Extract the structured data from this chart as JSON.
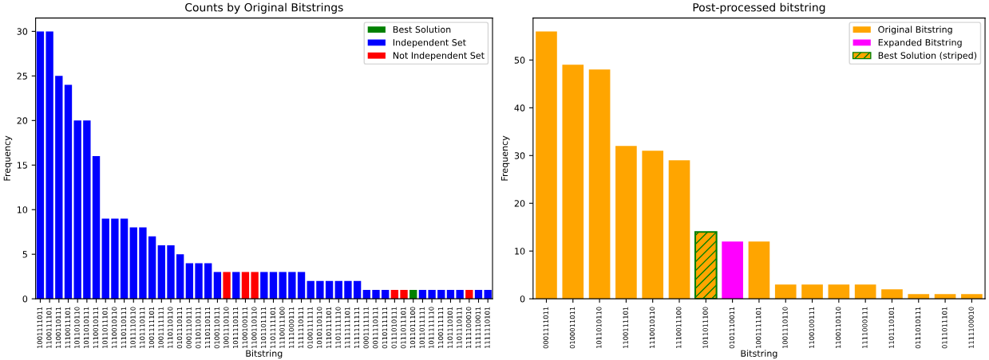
{
  "chart_data": [
    {
      "type": "bar",
      "title": "Counts by Original Bitstrings",
      "xlabel": "Bitstring",
      "ylabel": "Frequency",
      "categories": [
        "1001111011",
        "1100111101",
        "1100110111",
        "1110011101",
        "1011010110",
        "1011010111",
        "1110010111",
        "1011011101",
        "1110010110",
        "1110110111",
        "1011110110",
        "1101110111",
        "1001111101",
        "1001111111",
        "1110110110",
        "0101110111",
        "0001110111",
        "0110110111",
        "1110110111",
        "0100110111",
        "1001110110",
        "1011110111",
        "1100100111",
        "1100110110",
        "1101101111",
        "1101111101",
        "1110011100",
        "1111000111",
        "1111110111",
        "0100111111",
        "1010110110",
        "1110111101",
        "1101111110",
        "1111111101",
        "1111111111",
        "0001111111",
        "0011110111",
        "0110111111",
        "0111010111",
        "0111011101",
        "1011011100",
        "1011011111",
        "1011111110",
        "1100111111",
        "1101110101",
        "1101110111",
        "1111100010",
        "1111110011",
        "1111110101"
      ],
      "series": [
        {
          "name": "Best Solution",
          "color": "#008000",
          "values": [
            null,
            null,
            null,
            null,
            null,
            null,
            null,
            null,
            null,
            null,
            null,
            null,
            null,
            null,
            null,
            null,
            null,
            null,
            null,
            null,
            null,
            null,
            null,
            null,
            null,
            null,
            null,
            null,
            null,
            null,
            null,
            null,
            null,
            null,
            null,
            null,
            null,
            null,
            null,
            null,
            1,
            null,
            null,
            null,
            null,
            null,
            null,
            null,
            null
          ]
        },
        {
          "name": "Independent Set",
          "color": "#0000ff",
          "values": [
            30,
            30,
            25,
            24,
            20,
            20,
            16,
            9,
            9,
            9,
            8,
            8,
            7,
            6,
            6,
            5,
            4,
            4,
            4,
            3,
            null,
            3,
            null,
            null,
            3,
            3,
            3,
            3,
            3,
            2,
            2,
            2,
            2,
            2,
            2,
            1,
            1,
            1,
            null,
            null,
            null,
            1,
            1,
            1,
            1,
            1,
            null,
            1,
            1
          ]
        },
        {
          "name": "Not Independent Set",
          "color": "#ff0000",
          "values": [
            null,
            null,
            null,
            null,
            null,
            null,
            null,
            null,
            null,
            null,
            null,
            null,
            null,
            null,
            null,
            null,
            null,
            null,
            null,
            null,
            3,
            null,
            3,
            3,
            null,
            null,
            null,
            null,
            null,
            null,
            null,
            null,
            null,
            null,
            null,
            null,
            null,
            null,
            1,
            1,
            null,
            null,
            null,
            null,
            null,
            null,
            1,
            null,
            null
          ]
        }
      ],
      "ylim": [
        0,
        31.5
      ],
      "yticks": [
        0,
        5,
        10,
        15,
        20,
        25,
        30
      ],
      "legend": "top right",
      "grid": false
    },
    {
      "type": "bar",
      "title": "Post-processed bitstring",
      "xlabel": "Bitstring",
      "ylabel": "Frequency",
      "categories": [
        "0001111011",
        "0100011011",
        "1011010110",
        "1100111101",
        "1110010110",
        "1110011100",
        "1011011100",
        "0101110011",
        "1001111101",
        "1001110110",
        "1100100111",
        "1100110110",
        "1111000111",
        "1101110101",
        "0111010111",
        "0111011101",
        "1111100010"
      ],
      "series": [
        {
          "name": "Original Bitstring",
          "color": "#ffa500",
          "values": [
            56,
            49,
            48,
            32,
            31,
            29,
            null,
            null,
            12,
            3,
            3,
            3,
            3,
            2,
            1,
            1,
            1
          ]
        },
        {
          "name": "Expanded Bitstring",
          "color": "#ff00ff",
          "values": [
            null,
            null,
            null,
            null,
            null,
            null,
            null,
            12,
            null,
            null,
            null,
            null,
            null,
            null,
            null,
            null,
            null
          ]
        },
        {
          "name": "Best Solution (striped)",
          "color": "#008000",
          "line_style": "dashed",
          "values": [
            null,
            null,
            null,
            null,
            null,
            null,
            14,
            null,
            null,
            null,
            null,
            null,
            null,
            null,
            null,
            null,
            null
          ]
        }
      ],
      "ylim": [
        0,
        58.8
      ],
      "yticks": [
        0,
        10,
        20,
        30,
        40,
        50
      ],
      "legend": "top right",
      "grid": false
    }
  ]
}
